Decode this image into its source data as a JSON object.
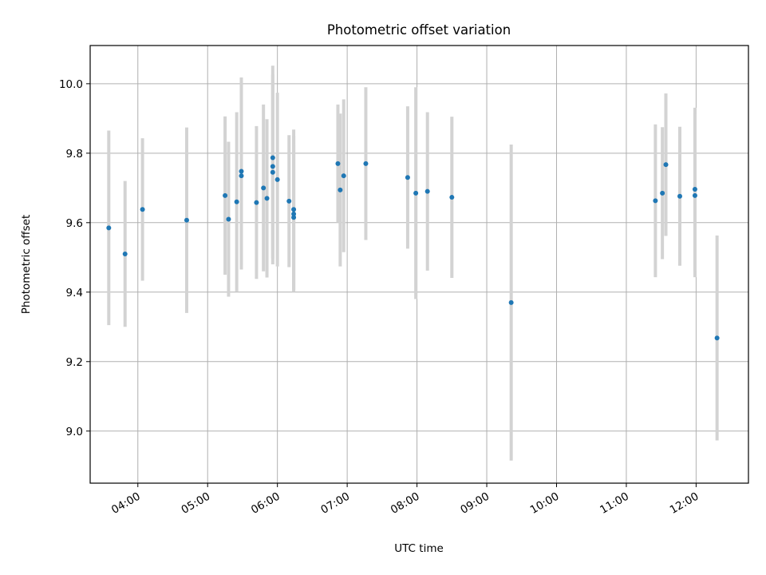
{
  "chart_data": {
    "type": "scatter",
    "title": "Photometric offset variation",
    "xlabel": "UTC time",
    "ylabel": "Photometric offset",
    "x_unit": "hours UTC",
    "xlim": [
      "03:19",
      "12:45"
    ],
    "ylim": [
      8.85,
      10.11
    ],
    "x_ticks": [
      "04:00",
      "05:00",
      "06:00",
      "07:00",
      "08:00",
      "09:00",
      "10:00",
      "11:00",
      "12:00"
    ],
    "y_ticks": [
      "9.0",
      "9.2",
      "9.4",
      "9.6",
      "9.8",
      "10.0"
    ],
    "grid": true,
    "legend": "none",
    "colors": {
      "point": "#1f77b4",
      "error_bar": "#d3d3d3"
    },
    "points": [
      {
        "x": "03:35",
        "y": 9.585,
        "err": 0.28
      },
      {
        "x": "03:49",
        "y": 9.51,
        "err": 0.21
      },
      {
        "x": "04:04",
        "y": 9.638,
        "err": 0.205
      },
      {
        "x": "04:42",
        "y": 9.607,
        "err": 0.267
      },
      {
        "x": "05:15",
        "y": 9.678,
        "err": 0.228
      },
      {
        "x": "05:18",
        "y": 9.61,
        "err": 0.223
      },
      {
        "x": "05:25",
        "y": 9.66,
        "err": 0.258
      },
      {
        "x": "05:29",
        "y": 9.748,
        "err": 0.27
      },
      {
        "x": "05:29",
        "y": 9.735,
        "err": 0.27
      },
      {
        "x": "05:42",
        "y": 9.658,
        "err": 0.22
      },
      {
        "x": "05:48",
        "y": 9.7,
        "err": 0.24
      },
      {
        "x": "05:51",
        "y": 9.67,
        "err": 0.228
      },
      {
        "x": "05:56",
        "y": 9.787,
        "err": 0.265
      },
      {
        "x": "05:56",
        "y": 9.762,
        "err": 0.265
      },
      {
        "x": "05:56",
        "y": 9.745,
        "err": 0.265
      },
      {
        "x": "06:00",
        "y": 9.724,
        "err": 0.25
      },
      {
        "x": "06:10",
        "y": 9.662,
        "err": 0.19
      },
      {
        "x": "06:14",
        "y": 9.638,
        "err": 0.23
      },
      {
        "x": "06:14",
        "y": 9.625,
        "err": 0.225
      },
      {
        "x": "06:14",
        "y": 9.615,
        "err": 0.21
      },
      {
        "x": "06:52",
        "y": 9.77,
        "err": 0.17
      },
      {
        "x": "06:54",
        "y": 9.694,
        "err": 0.22
      },
      {
        "x": "06:57",
        "y": 9.735,
        "err": 0.22
      },
      {
        "x": "07:16",
        "y": 9.77,
        "err": 0.22
      },
      {
        "x": "07:52",
        "y": 9.73,
        "err": 0.205
      },
      {
        "x": "07:59",
        "y": 9.685,
        "err": 0.305
      },
      {
        "x": "08:09",
        "y": 9.69,
        "err": 0.228
      },
      {
        "x": "08:30",
        "y": 9.673,
        "err": 0.232
      },
      {
        "x": "09:21",
        "y": 9.37,
        "err": 0.455
      },
      {
        "x": "11:25",
        "y": 9.663,
        "err": 0.22
      },
      {
        "x": "11:31",
        "y": 9.685,
        "err": 0.19
      },
      {
        "x": "11:34",
        "y": 9.767,
        "err": 0.205
      },
      {
        "x": "11:46",
        "y": 9.676,
        "err": 0.2
      },
      {
        "x": "11:59",
        "y": 9.696,
        "err": 0.235
      },
      {
        "x": "11:59",
        "y": 9.678,
        "err": 0.235
      },
      {
        "x": "12:18",
        "y": 9.268,
        "err": 0.295
      }
    ]
  }
}
